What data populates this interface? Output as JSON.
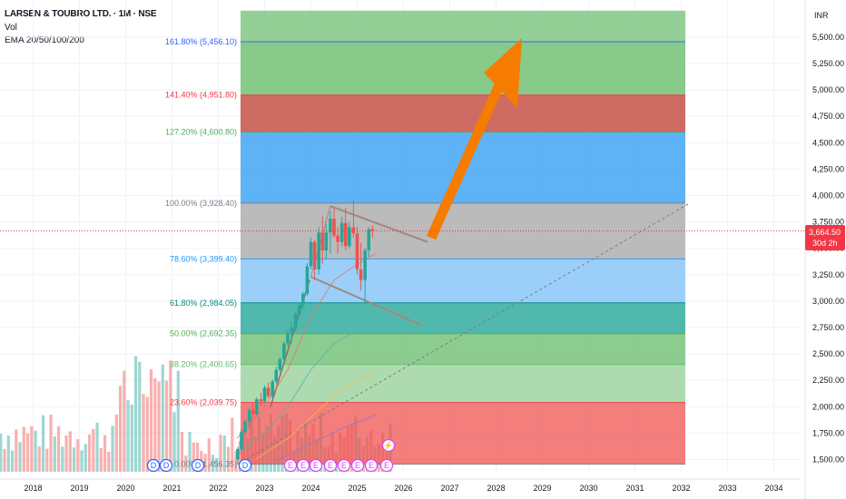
{
  "header": {
    "title": "LARSEN & TOUBRO LTD. · 1M · NSE",
    "vol_label": "Vol",
    "ema_label": "EMA 20/50/100/200"
  },
  "currency": "INR",
  "price": {
    "value": "3,664.50",
    "countdown": "30d 2h",
    "color": "#f23645"
  },
  "colors": {
    "up": "#26a69a",
    "down": "#ef5350",
    "arrow": "#f57c00",
    "channel": "#a1887f"
  },
  "chart_data": {
    "type": "candlestick",
    "x_labels": [
      "2018",
      "2019",
      "2020",
      "2021",
      "2022",
      "2023",
      "2024",
      "2025",
      "2026",
      "2027",
      "2028",
      "2029",
      "2030",
      "2031",
      "2032",
      "2033",
      "2034"
    ],
    "y_ticks": [
      "1,500.00",
      "1,750.00",
      "2,000.00",
      "2,250.00",
      "2,500.00",
      "2,750.00",
      "3,000.00",
      "3,250.00",
      "3,500.00",
      "3,750.00",
      "4,000.00",
      "4,250.00",
      "4,500.00",
      "4,750.00",
      "5,000.00",
      "5,250.00",
      "5,500.00"
    ],
    "y_values": [
      1500,
      1750,
      2000,
      2250,
      2500,
      2750,
      3000,
      3250,
      3500,
      3750,
      4000,
      4250,
      4500,
      4750,
      5000,
      5250,
      5500
    ],
    "ylim": [
      1450,
      5750
    ],
    "fib_levels": [
      {
        "label": "161.80% (5,456.10)",
        "value": 5456.1,
        "color": "#2962ff"
      },
      {
        "label": "141.40% (4,951.80)",
        "value": 4951.8,
        "color": "#f23645"
      },
      {
        "label": "127.20% (4,600.80)",
        "value": 4600.8,
        "color": "#4caf50"
      },
      {
        "label": "100.00% (3,928.40)",
        "value": 3928.4,
        "color": "#787b86"
      },
      {
        "label": "78.60% (3,399.40)",
        "value": 3399.4,
        "color": "#2196f3"
      },
      {
        "label": "61.80% (2,984.05)",
        "value": 2984.05,
        "color": "#00897b"
      },
      {
        "label": "50.00% (2,692.35)",
        "value": 2692.35,
        "color": "#4caf50"
      },
      {
        "label": "38.20% (2,400.65)",
        "value": 2400.65,
        "color": "#66bb6a"
      },
      {
        "label": "23.60% (2,039.75)",
        "value": 2039.75,
        "color": "#f23645"
      },
      {
        "label": "0.00% (1,456.35)",
        "value": 1456.35,
        "color": "#787b86"
      }
    ],
    "fib_zones": [
      {
        "from": 5456.1,
        "to": 5750,
        "color": "#81c784",
        "opacity": 0.85
      },
      {
        "from": 4951.8,
        "to": 5456.1,
        "color": "#81c784",
        "opacity": 0.95
      },
      {
        "from": 4600.8,
        "to": 4951.8,
        "color": "#c65146",
        "opacity": 0.85
      },
      {
        "from": 3928.4,
        "to": 4600.8,
        "color": "#42a5f5",
        "opacity": 0.85
      },
      {
        "from": 3399.4,
        "to": 3928.4,
        "color": "#9e9e9e",
        "opacity": 0.7
      },
      {
        "from": 2984.05,
        "to": 3399.4,
        "color": "#90caf9",
        "opacity": 0.9
      },
      {
        "from": 2692.35,
        "to": 2984.05,
        "color": "#26a69a",
        "opacity": 0.8
      },
      {
        "from": 2400.65,
        "to": 2692.35,
        "color": "#66bb6a",
        "opacity": 0.75
      },
      {
        "from": 2039.75,
        "to": 2400.65,
        "color": "#a5d6a7",
        "opacity": 0.9
      },
      {
        "from": 1456.35,
        "to": 2039.75,
        "color": "#ef5350",
        "opacity": 0.75
      }
    ],
    "candles": [
      {
        "t": 2022.42,
        "o": 1500,
        "h": 1620,
        "l": 1456,
        "c": 1600
      },
      {
        "t": 2022.5,
        "o": 1600,
        "h": 1790,
        "l": 1580,
        "c": 1760
      },
      {
        "t": 2022.58,
        "o": 1760,
        "h": 1880,
        "l": 1740,
        "c": 1860
      },
      {
        "t": 2022.67,
        "o": 1860,
        "h": 1990,
        "l": 1800,
        "c": 1970
      },
      {
        "t": 2022.75,
        "o": 1970,
        "h": 2030,
        "l": 1900,
        "c": 1930
      },
      {
        "t": 2022.83,
        "o": 1930,
        "h": 2090,
        "l": 1910,
        "c": 2070
      },
      {
        "t": 2022.92,
        "o": 2070,
        "h": 2130,
        "l": 2010,
        "c": 2050
      },
      {
        "t": 2023.0,
        "o": 2050,
        "h": 2200,
        "l": 2040,
        "c": 2180
      },
      {
        "t": 2023.08,
        "o": 2180,
        "h": 2230,
        "l": 2080,
        "c": 2100
      },
      {
        "t": 2023.17,
        "o": 2100,
        "h": 2260,
        "l": 2080,
        "c": 2240
      },
      {
        "t": 2023.25,
        "o": 2240,
        "h": 2380,
        "l": 2220,
        "c": 2350
      },
      {
        "t": 2023.33,
        "o": 2350,
        "h": 2470,
        "l": 2330,
        "c": 2450
      },
      {
        "t": 2023.42,
        "o": 2450,
        "h": 2620,
        "l": 2440,
        "c": 2600
      },
      {
        "t": 2023.5,
        "o": 2600,
        "h": 2730,
        "l": 2570,
        "c": 2700
      },
      {
        "t": 2023.58,
        "o": 2700,
        "h": 2800,
        "l": 2600,
        "c": 2750
      },
      {
        "t": 2023.67,
        "o": 2750,
        "h": 2900,
        "l": 2720,
        "c": 2880
      },
      {
        "t": 2023.75,
        "o": 2880,
        "h": 2990,
        "l": 2860,
        "c": 2960
      },
      {
        "t": 2023.83,
        "o": 2960,
        "h": 3090,
        "l": 2920,
        "c": 3070
      },
      {
        "t": 2023.92,
        "o": 3070,
        "h": 3360,
        "l": 3050,
        "c": 3330
      },
      {
        "t": 2024.0,
        "o": 3330,
        "h": 3600,
        "l": 3300,
        "c": 3560
      },
      {
        "t": 2024.08,
        "o": 3560,
        "h": 3580,
        "l": 3200,
        "c": 3300
      },
      {
        "t": 2024.17,
        "o": 3300,
        "h": 3700,
        "l": 3250,
        "c": 3650
      },
      {
        "t": 2024.25,
        "o": 3650,
        "h": 3800,
        "l": 3350,
        "c": 3480
      },
      {
        "t": 2024.33,
        "o": 3480,
        "h": 3730,
        "l": 3400,
        "c": 3650
      },
      {
        "t": 2024.42,
        "o": 3650,
        "h": 3850,
        "l": 3450,
        "c": 3780
      },
      {
        "t": 2024.5,
        "o": 3780,
        "h": 3880,
        "l": 3600,
        "c": 3620
      },
      {
        "t": 2024.58,
        "o": 3620,
        "h": 3700,
        "l": 3450,
        "c": 3560
      },
      {
        "t": 2024.67,
        "o": 3560,
        "h": 3800,
        "l": 3520,
        "c": 3740
      },
      {
        "t": 2024.75,
        "o": 3740,
        "h": 3880,
        "l": 3480,
        "c": 3520
      },
      {
        "t": 2024.83,
        "o": 3520,
        "h": 3750,
        "l": 3500,
        "c": 3700
      },
      {
        "t": 2024.92,
        "o": 3700,
        "h": 3960,
        "l": 3600,
        "c": 3640
      },
      {
        "t": 2025.0,
        "o": 3640,
        "h": 3700,
        "l": 3250,
        "c": 3300
      },
      {
        "t": 2025.08,
        "o": 3300,
        "h": 3550,
        "l": 3100,
        "c": 3200
      },
      {
        "t": 2025.17,
        "o": 3200,
        "h": 3500,
        "l": 2970,
        "c": 3480
      },
      {
        "t": 2025.25,
        "o": 3480,
        "h": 3700,
        "l": 3420,
        "c": 3680
      },
      {
        "t": 2025.33,
        "o": 3680,
        "h": 3720,
        "l": 3600,
        "c": 3664.5
      }
    ],
    "volume_series_count": 120
  },
  "markers": {
    "dividend": "D",
    "earnings": "E",
    "split": "⚡"
  }
}
